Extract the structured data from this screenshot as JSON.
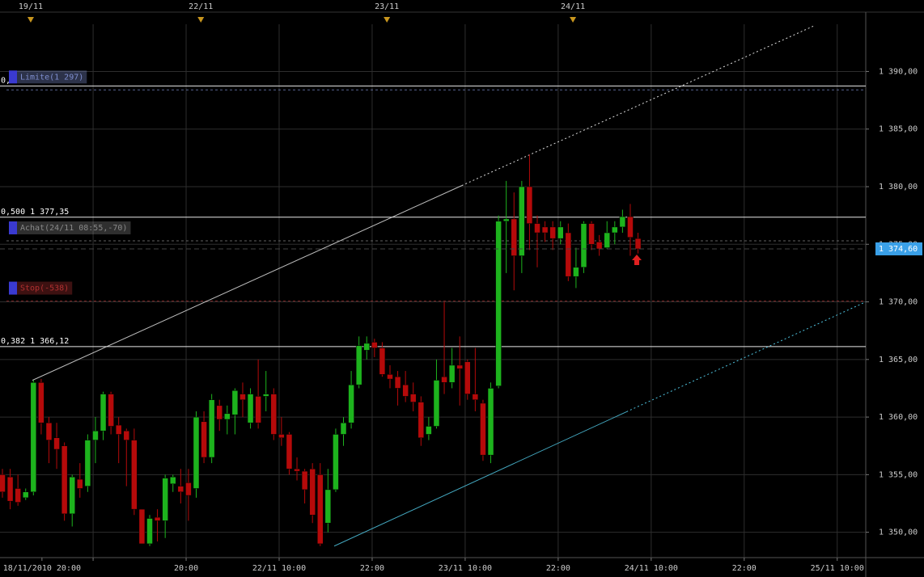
{
  "chart_data": {
    "type": "candlestick",
    "open": [
      1355.0,
      1354.8,
      1353.8,
      1353.0,
      1353.5,
      1363.0,
      1359.5,
      1358.2,
      1357.5,
      1351.6,
      1354.6,
      1354.0,
      1358.0,
      1358.8,
      1362.0,
      1359.3,
      1358.8,
      1358.0,
      1352.0,
      1349.0,
      1351.3,
      1351.0,
      1354.2,
      1354.0,
      1354.3,
      1353.8,
      1359.6,
      1356.5,
      1361.0,
      1359.8,
      1360.2,
      1362.0,
      1359.5,
      1361.8,
      1361.8,
      1362.0,
      1358.5,
      1358.5,
      1355.5,
      1355.3,
      1355.5,
      1355.0,
      1350.8,
      1353.7,
      1358.5,
      1359.5,
      1362.8,
      1365.8,
      1366.5,
      1366.0,
      1363.7,
      1363.5,
      1362.8,
      1362.0,
      1361.3,
      1358.5,
      1359.2,
      1363.5,
      1363.0,
      1364.5,
      1364.8,
      1362.0,
      1361.2,
      1356.7,
      1362.7,
      1377.0,
      1377.2,
      1374.0,
      1380.0,
      1376.8,
      1376.5,
      1376.5,
      1375.5,
      1376.0,
      1372.2,
      1373.0,
      1376.8,
      1375.2,
      1374.7,
      1376.0,
      1376.5,
      1377.4,
      1375.5
    ],
    "high": [
      1355.5,
      1355.5,
      1355.0,
      1353.8,
      1363.2,
      1363.3,
      1360.0,
      1359.5,
      1357.8,
      1355.0,
      1356.0,
      1358.5,
      1360.0,
      1362.2,
      1362.2,
      1360.0,
      1359.0,
      1359.0,
      1352.0,
      1351.5,
      1352.0,
      1355.0,
      1355.0,
      1355.5,
      1355.5,
      1360.5,
      1360.5,
      1362.0,
      1361.5,
      1361.0,
      1362.5,
      1363.0,
      1362.5,
      1365.0,
      1364.0,
      1362.5,
      1360.0,
      1358.7,
      1356.5,
      1355.5,
      1356.0,
      1356.0,
      1355.5,
      1359.0,
      1360.0,
      1364.0,
      1367.0,
      1367.0,
      1366.8,
      1366.5,
      1364.5,
      1364.0,
      1364.0,
      1363.0,
      1361.8,
      1360.0,
      1365.0,
      1370.0,
      1366.0,
      1367.0,
      1365.0,
      1366.0,
      1361.5,
      1363.0,
      1377.5,
      1380.5,
      1379.5,
      1380.5,
      1382.8,
      1377.5,
      1377.0,
      1377.0,
      1377.0,
      1376.8,
      1374.7,
      1377.0,
      1377.0,
      1375.8,
      1377.0,
      1377.0,
      1378.0,
      1378.5,
      1376.0
    ],
    "low": [
      1353.0,
      1352.0,
      1352.3,
      1352.8,
      1353.2,
      1358.5,
      1356.0,
      1355.5,
      1351.0,
      1350.5,
      1353.0,
      1353.5,
      1356.0,
      1358.0,
      1358.5,
      1356.0,
      1354.0,
      1351.5,
      1349.0,
      1348.8,
      1349.2,
      1349.5,
      1353.5,
      1352.5,
      1351.0,
      1353.0,
      1356.0,
      1356.0,
      1358.8,
      1358.5,
      1358.5,
      1360.0,
      1359.0,
      1359.0,
      1360.5,
      1358.0,
      1357.5,
      1355.0,
      1354.5,
      1352.5,
      1350.8,
      1348.8,
      1350.0,
      1353.5,
      1357.5,
      1359.0,
      1362.5,
      1365.0,
      1365.2,
      1363.5,
      1362.5,
      1361.0,
      1361.3,
      1360.5,
      1357.5,
      1358.0,
      1359.0,
      1362.0,
      1362.5,
      1361.0,
      1361.5,
      1360.5,
      1356.2,
      1356.0,
      1362.5,
      1372.5,
      1371.0,
      1372.5,
      1374.5,
      1373.0,
      1375.2,
      1374.5,
      1375.0,
      1371.8,
      1371.2,
      1372.5,
      1374.5,
      1374.0,
      1374.6,
      1375.0,
      1376.0,
      1374.0,
      1374.2
    ],
    "close": [
      1353.5,
      1352.7,
      1352.6,
      1353.5,
      1363.0,
      1359.5,
      1358.0,
      1357.2,
      1351.6,
      1354.8,
      1353.8,
      1358.0,
      1358.8,
      1362.0,
      1359.2,
      1358.5,
      1358.0,
      1352.0,
      1349.0,
      1351.2,
      1351.0,
      1354.7,
      1354.8,
      1353.5,
      1353.2,
      1360.0,
      1356.5,
      1361.5,
      1359.8,
      1360.3,
      1362.3,
      1361.5,
      1362.0,
      1359.5,
      1362.0,
      1358.5,
      1358.2,
      1355.5,
      1355.3,
      1353.7,
      1351.5,
      1349.0,
      1353.7,
      1358.5,
      1359.5,
      1362.8,
      1366.2,
      1366.4,
      1366.0,
      1363.7,
      1363.3,
      1362.5,
      1361.8,
      1361.3,
      1358.2,
      1359.2,
      1363.2,
      1363.0,
      1364.5,
      1364.2,
      1362.0,
      1361.5,
      1356.7,
      1362.5,
      1377.0,
      1377.2,
      1374.0,
      1380.0,
      1376.8,
      1376.0,
      1376.0,
      1375.5,
      1376.5,
      1372.2,
      1373.0,
      1376.8,
      1375.0,
      1374.6,
      1376.0,
      1376.5,
      1377.4,
      1375.6,
      1374.6
    ],
    "up_color": "#1db31d",
    "down_color": "#b50a0a",
    "xlim": [
      -0.313,
      111.38
    ],
    "xticks": [
      {
        "value": 5.1,
        "label": "18/11/2010 20:00"
      },
      {
        "value": 11.7,
        "label": ""
      },
      {
        "value": 23.7,
        "label": "20:00"
      },
      {
        "value": 35.7,
        "label": "22/11 10:00"
      },
      {
        "value": 47.7,
        "label": "22:00"
      },
      {
        "value": 59.7,
        "label": "23/11 10:00"
      },
      {
        "value": 71.7,
        "label": "22:00"
      },
      {
        "value": 83.7,
        "label": "24/11 10:00"
      },
      {
        "value": 95.7,
        "label": "22:00"
      },
      {
        "value": 107.7,
        "label": "25/11 10:00"
      }
    ],
    "top_markers": [
      {
        "value": 3.65,
        "label": "19/11"
      },
      {
        "value": 25.6,
        "label": "22/11"
      },
      {
        "value": 49.6,
        "label": "23/11"
      },
      {
        "value": 73.6,
        "label": "24/11"
      }
    ],
    "ylim": [
      1347.8,
      1394.1
    ],
    "yticks": [
      {
        "value": 1350,
        "label": "1 350,00"
      },
      {
        "value": 1355,
        "label": "1 355,00"
      },
      {
        "value": 1360,
        "label": "1 360,00"
      },
      {
        "value": 1365,
        "label": "1 365,00"
      },
      {
        "value": 1370,
        "label": "1 370,00"
      },
      {
        "value": 1375,
        "label": "1 375,00"
      },
      {
        "value": 1380,
        "label": "1 380,00"
      },
      {
        "value": 1385,
        "label": "1 385,00"
      },
      {
        "value": 1390,
        "label": "1 390,00"
      }
    ],
    "grid": true,
    "last_price": {
      "value": 1374.6,
      "label": "1 374,60"
    },
    "levels": [
      {
        "label": "0,",
        "value": 1388.74
      },
      {
        "label": "0,500 1 377,35",
        "value": 1377.35
      },
      {
        "label": "0,382 1 366,12",
        "value": 1366.12
      }
    ],
    "orders": [
      {
        "label": "Limite(1 297)",
        "value": 1388.4,
        "color": "#7f8fd0"
      },
      {
        "label": "Achat(24/11 08:55,-70)",
        "value": 1375.3,
        "color": "#888888"
      },
      {
        "label": "Stop(-538)",
        "value": 1370.07,
        "color": "#b03030"
      }
    ],
    "trendlines": [
      {
        "x": [
          3.86,
          104.6
        ],
        "y": [
          1363.19,
          1393.93
        ],
        "color": "#dddddd"
      },
      {
        "x": [
          42.8,
          111.38
        ],
        "y": [
          1348.8,
          1370.0
        ],
        "color": "#4fc4e0"
      }
    ]
  }
}
